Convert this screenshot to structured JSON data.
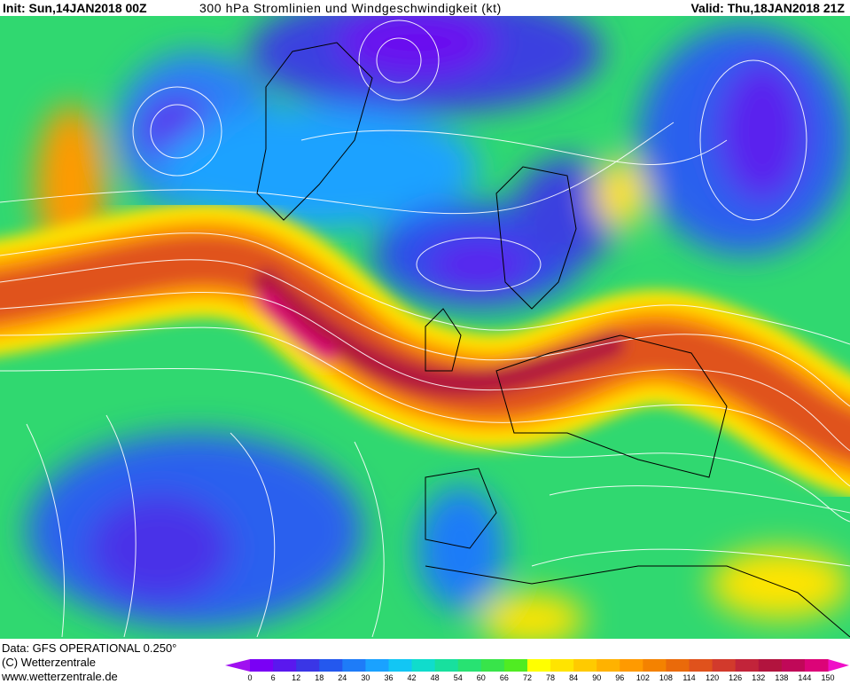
{
  "header": {
    "init": "Init: Sun,14JAN2018 00Z",
    "title": "300 hPa Stromlinien und Windgeschwindigkeit (kt)",
    "valid": "Valid: Thu,18JAN2018 21Z"
  },
  "footer": {
    "data": "Data: GFS OPERATIONAL 0.250°",
    "copyright": "(C) Wetterzentrale",
    "url": "www.wetterzentrale.de"
  },
  "legend": {
    "ticks": [
      0,
      6,
      12,
      18,
      24,
      30,
      36,
      42,
      48,
      54,
      60,
      66,
      72,
      78,
      84,
      90,
      96,
      102,
      108,
      114,
      120,
      126,
      132,
      138,
      144,
      150
    ],
    "colors": [
      "#7a00f5",
      "#5a18ee",
      "#3a36e6",
      "#2458ee",
      "#1e7cf8",
      "#1aa2ff",
      "#12c6f4",
      "#10dccc",
      "#18e09e",
      "#28e272",
      "#38e44a",
      "#50ec22",
      "#ffff00",
      "#ffe400",
      "#ffca00",
      "#ffb200",
      "#ff9a00",
      "#f48200",
      "#ea6a0a",
      "#e0521c",
      "#d23a2c",
      "#c2243a",
      "#b2143e",
      "#c00858",
      "#dc0478"
    ],
    "under_color": "#a010f0",
    "over_color": "#f010c8"
  }
}
